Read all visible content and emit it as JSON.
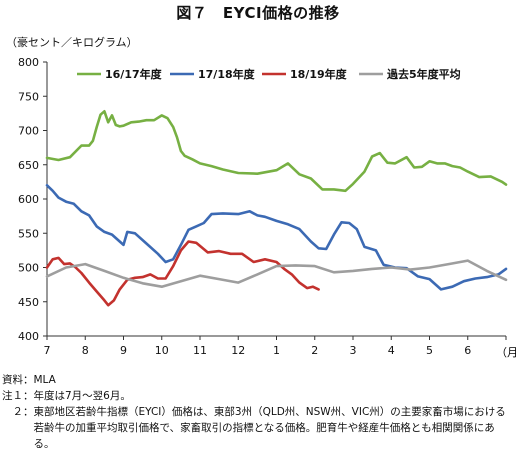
{
  "title": "図７　EYCI価格の推移",
  "unit_label": "（豪セント／キログラム）",
  "x_unit_label": "（月）",
  "notes": [
    {
      "label": "資料：",
      "text": "MLA"
    },
    {
      "label": "注１：",
      "text": "年度は7月～翌6月。"
    },
    {
      "label": "　２：",
      "text": "東部地区若齢牛指標（EYCI）価格は、東部3州（QLD州、NSW州、VIC州）の主要家畜市場における若齢牛の加重平均取引価格で、家畜取引の指標となる価格。肥育牛や経産牛価格とも相関関係にある。"
    }
  ],
  "chart_data": {
    "type": "line",
    "title": "EYCI価格の推移",
    "ylabel": "（豪セント／キログラム）",
    "xlabel": "（月）",
    "ylim": [
      400,
      800
    ],
    "yticks": [
      400,
      450,
      500,
      550,
      600,
      650,
      700,
      750,
      800
    ],
    "xlim": [
      0,
      12
    ],
    "x_tick_labels": [
      "7",
      "8",
      "9",
      "10",
      "11",
      "12",
      "1",
      "2",
      "3",
      "4",
      "5",
      "6"
    ],
    "grid": false,
    "legend_position": "top",
    "series": [
      {
        "name": "16/17年度",
        "color": "#77b043",
        "points": [
          [
            0.0,
            660
          ],
          [
            0.3,
            657
          ],
          [
            0.6,
            661
          ],
          [
            0.9,
            678
          ],
          [
            1.1,
            678
          ],
          [
            1.2,
            685
          ],
          [
            1.3,
            705
          ],
          [
            1.4,
            723
          ],
          [
            1.5,
            728
          ],
          [
            1.6,
            712
          ],
          [
            1.7,
            722
          ],
          [
            1.8,
            708
          ],
          [
            1.9,
            706
          ],
          [
            2.0,
            707
          ],
          [
            2.2,
            712
          ],
          [
            2.4,
            713
          ],
          [
            2.6,
            715
          ],
          [
            2.8,
            715
          ],
          [
            3.0,
            722
          ],
          [
            3.15,
            718
          ],
          [
            3.3,
            705
          ],
          [
            3.4,
            690
          ],
          [
            3.5,
            670
          ],
          [
            3.6,
            663
          ],
          [
            3.8,
            658
          ],
          [
            4.0,
            652
          ],
          [
            4.3,
            648
          ],
          [
            4.6,
            643
          ],
          [
            5.0,
            638
          ],
          [
            5.5,
            637
          ],
          [
            6.0,
            642
          ],
          [
            6.3,
            652
          ],
          [
            6.6,
            636
          ],
          [
            6.9,
            630
          ],
          [
            7.2,
            614
          ],
          [
            7.5,
            614
          ],
          [
            7.8,
            612
          ],
          [
            8.0,
            622
          ],
          [
            8.3,
            640
          ],
          [
            8.5,
            662
          ],
          [
            8.7,
            667
          ],
          [
            8.9,
            653
          ],
          [
            9.1,
            652
          ],
          [
            9.4,
            661
          ],
          [
            9.6,
            646
          ],
          [
            9.8,
            647
          ],
          [
            10.0,
            655
          ],
          [
            10.2,
            652
          ],
          [
            10.4,
            652
          ],
          [
            10.6,
            648
          ],
          [
            10.8,
            646
          ],
          [
            11.0,
            640
          ],
          [
            11.3,
            632
          ],
          [
            11.6,
            633
          ],
          [
            11.9,
            625
          ],
          [
            12.0,
            621
          ]
        ]
      },
      {
        "name": "17/18年度",
        "color": "#3c6ab4",
        "points": [
          [
            0.0,
            620
          ],
          [
            0.15,
            612
          ],
          [
            0.3,
            602
          ],
          [
            0.5,
            596
          ],
          [
            0.7,
            593
          ],
          [
            0.9,
            582
          ],
          [
            1.1,
            576
          ],
          [
            1.3,
            560
          ],
          [
            1.5,
            552
          ],
          [
            1.7,
            548
          ],
          [
            1.9,
            538
          ],
          [
            2.0,
            533
          ],
          [
            2.1,
            552
          ],
          [
            2.3,
            550
          ],
          [
            2.6,
            535
          ],
          [
            2.9,
            520
          ],
          [
            3.1,
            508
          ],
          [
            3.3,
            512
          ],
          [
            3.5,
            533
          ],
          [
            3.7,
            555
          ],
          [
            3.9,
            560
          ],
          [
            4.1,
            565
          ],
          [
            4.3,
            578
          ],
          [
            4.6,
            579
          ],
          [
            5.0,
            578
          ],
          [
            5.3,
            582
          ],
          [
            5.5,
            576
          ],
          [
            5.7,
            574
          ],
          [
            6.0,
            568
          ],
          [
            6.3,
            563
          ],
          [
            6.6,
            556
          ],
          [
            6.9,
            538
          ],
          [
            7.1,
            528
          ],
          [
            7.3,
            527
          ],
          [
            7.5,
            548
          ],
          [
            7.7,
            566
          ],
          [
            7.9,
            565
          ],
          [
            8.1,
            556
          ],
          [
            8.3,
            530
          ],
          [
            8.6,
            525
          ],
          [
            8.8,
            504
          ],
          [
            9.1,
            500
          ],
          [
            9.4,
            499
          ],
          [
            9.7,
            487
          ],
          [
            10.0,
            483
          ],
          [
            10.3,
            468
          ],
          [
            10.6,
            472
          ],
          [
            10.9,
            480
          ],
          [
            11.2,
            484
          ],
          [
            11.5,
            486
          ],
          [
            11.8,
            490
          ],
          [
            12.0,
            498
          ]
        ]
      },
      {
        "name": "18/19年度",
        "color": "#c3322e",
        "points": [
          [
            0.0,
            500
          ],
          [
            0.15,
            512
          ],
          [
            0.3,
            514
          ],
          [
            0.45,
            505
          ],
          [
            0.6,
            506
          ],
          [
            0.75,
            500
          ],
          [
            0.9,
            492
          ],
          [
            1.1,
            478
          ],
          [
            1.3,
            465
          ],
          [
            1.5,
            452
          ],
          [
            1.6,
            445
          ],
          [
            1.75,
            452
          ],
          [
            1.9,
            468
          ],
          [
            2.1,
            482
          ],
          [
            2.3,
            485
          ],
          [
            2.5,
            486
          ],
          [
            2.7,
            490
          ],
          [
            2.9,
            484
          ],
          [
            3.1,
            484
          ],
          [
            3.3,
            502
          ],
          [
            3.5,
            525
          ],
          [
            3.7,
            538
          ],
          [
            3.9,
            536
          ],
          [
            4.2,
            522
          ],
          [
            4.5,
            524
          ],
          [
            4.8,
            520
          ],
          [
            5.1,
            520
          ],
          [
            5.4,
            508
          ],
          [
            5.7,
            512
          ],
          [
            6.0,
            508
          ],
          [
            6.2,
            498
          ],
          [
            6.4,
            490
          ],
          [
            6.6,
            478
          ],
          [
            6.8,
            470
          ],
          [
            6.95,
            472
          ],
          [
            7.1,
            468
          ]
        ]
      },
      {
        "name": "過去5年度平均",
        "color": "#9e9e9e",
        "points": [
          [
            0.0,
            487
          ],
          [
            0.5,
            500
          ],
          [
            1.0,
            505
          ],
          [
            1.5,
            495
          ],
          [
            2.0,
            485
          ],
          [
            2.5,
            477
          ],
          [
            3.0,
            472
          ],
          [
            3.5,
            480
          ],
          [
            4.0,
            488
          ],
          [
            4.5,
            483
          ],
          [
            5.0,
            478
          ],
          [
            5.5,
            490
          ],
          [
            6.0,
            502
          ],
          [
            6.5,
            503
          ],
          [
            7.0,
            502
          ],
          [
            7.5,
            493
          ],
          [
            8.0,
            495
          ],
          [
            8.5,
            498
          ],
          [
            9.0,
            500
          ],
          [
            9.5,
            497
          ],
          [
            10.0,
            500
          ],
          [
            10.5,
            505
          ],
          [
            11.0,
            510
          ],
          [
            11.5,
            495
          ],
          [
            12.0,
            482
          ]
        ]
      }
    ]
  }
}
